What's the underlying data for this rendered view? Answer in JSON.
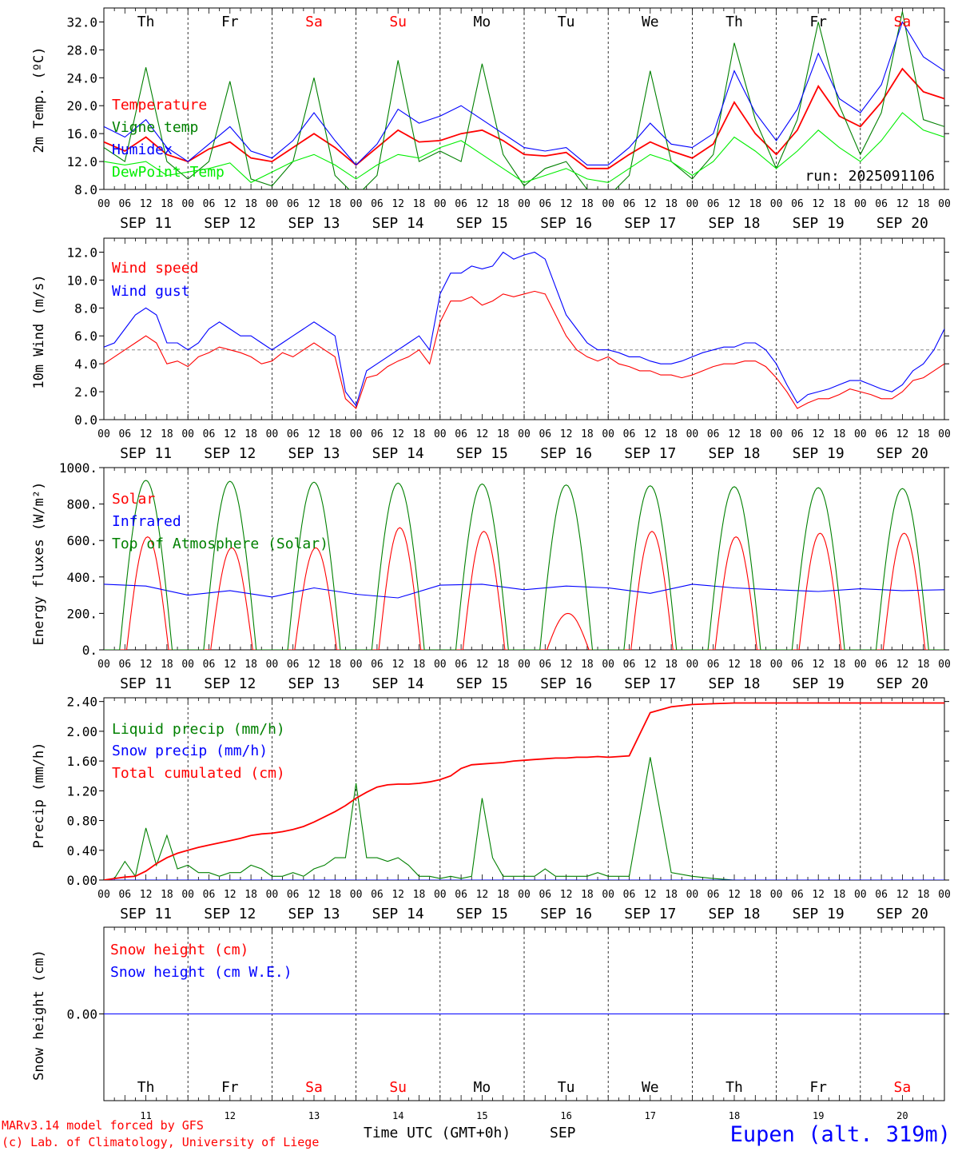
{
  "footer": {
    "model_line": "MARv3.14 model forced by GFS",
    "credit_line": "(c) Lab. of Climatology, University of Liege",
    "xaxis_title": "Time UTC (GMT+0h)",
    "month_label": "SEP",
    "station": "Eupen (alt. 319m)"
  },
  "colors": {
    "red": "#ff0000",
    "blue": "#0000ff",
    "dark_green": "#008000",
    "light_green": "#00ee00",
    "axis": "#000000",
    "weekend": "#ff0000"
  },
  "days": {
    "weekdays": [
      "Th",
      "Fr",
      "Sa",
      "Su",
      "Mo",
      "Tu",
      "We",
      "Th",
      "Fr",
      "Sa"
    ],
    "weekend_flags": [
      false,
      false,
      true,
      true,
      false,
      false,
      false,
      false,
      false,
      true
    ],
    "date_labels": [
      "SEP 11",
      "SEP 12",
      "SEP 13",
      "SEP 14",
      "SEP 15",
      "SEP 16",
      "SEP 17",
      "SEP 18",
      "SEP 19",
      "SEP 20"
    ],
    "day_numbers": [
      "11",
      "12",
      "13",
      "14",
      "15",
      "16",
      "17",
      "18",
      "19",
      "20"
    ],
    "hour_ticks": [
      "00",
      "06",
      "12",
      "18"
    ],
    "final_tick": "00"
  },
  "chart_data": [
    {
      "type": "line",
      "id": "temperature",
      "ylabel": "2m Temp. (ºC)",
      "ylim": [
        8,
        34
      ],
      "yticks": [
        "8.0",
        "12.0",
        "16.0",
        "20.0",
        "24.0",
        "28.0",
        "32.0"
      ],
      "run_label": "run: 2025091106",
      "x_hours": [
        0,
        6,
        12,
        18,
        24,
        30,
        36,
        42,
        48,
        54,
        60,
        66,
        72,
        78,
        84,
        90,
        96,
        102,
        108,
        114,
        120,
        126,
        132,
        138,
        144,
        150,
        156,
        162,
        168,
        174,
        180,
        186,
        192,
        198,
        204,
        210,
        216,
        222,
        228,
        234,
        240
      ],
      "series": [
        {
          "name": "Temperature",
          "color": "red",
          "values": [
            14.8,
            13.5,
            15.5,
            13.0,
            12.0,
            13.8,
            14.8,
            12.5,
            12.0,
            14.0,
            16.0,
            14.0,
            11.5,
            14.0,
            16.5,
            14.8,
            15.0,
            16.0,
            16.5,
            15.0,
            13.0,
            12.8,
            13.3,
            11.0,
            11.0,
            13.0,
            14.8,
            13.5,
            12.5,
            14.5,
            20.5,
            16.0,
            13.0,
            16.5,
            22.8,
            18.5,
            17.0,
            20.5,
            25.3,
            22.0,
            21.0
          ]
        },
        {
          "name": "Vigne temp",
          "color": "dark_green",
          "values": [
            14.0,
            12.0,
            25.5,
            12.0,
            9.5,
            12.0,
            23.5,
            9.5,
            8.5,
            12.0,
            24.0,
            10.0,
            7.0,
            10.0,
            26.5,
            12.0,
            13.5,
            12.0,
            26.0,
            13.0,
            8.5,
            11.0,
            12.0,
            8.0,
            7.0,
            10.0,
            25.0,
            12.0,
            9.5,
            13.0,
            29.0,
            18.0,
            11.0,
            18.0,
            32.0,
            20.0,
            13.0,
            19.0,
            33.5,
            18.0,
            17.0
          ]
        },
        {
          "name": "Humidex",
          "color": "blue",
          "values": [
            17.0,
            15.5,
            18.0,
            14.0,
            12.0,
            14.5,
            17.0,
            13.5,
            12.5,
            15.0,
            19.0,
            15.0,
            11.5,
            14.5,
            19.5,
            17.5,
            18.5,
            20.0,
            18.0,
            16.0,
            14.0,
            13.5,
            14.0,
            11.5,
            11.5,
            14.0,
            17.5,
            14.5,
            14.0,
            16.0,
            25.0,
            19.0,
            15.0,
            19.5,
            27.5,
            21.0,
            19.0,
            23.0,
            32.0,
            27.0,
            25.0
          ]
        },
        {
          "name": "DewPoint Temp",
          "color": "light_green",
          "values": [
            12.0,
            11.5,
            12.0,
            10.0,
            10.5,
            11.0,
            11.8,
            9.0,
            10.5,
            12.0,
            13.0,
            11.5,
            9.5,
            11.5,
            13.0,
            12.5,
            14.0,
            15.0,
            13.0,
            11.0,
            9.0,
            10.0,
            11.0,
            9.5,
            9.0,
            11.0,
            13.0,
            12.0,
            10.0,
            12.0,
            15.5,
            13.5,
            11.0,
            13.5,
            16.5,
            14.0,
            12.0,
            15.0,
            19.0,
            16.5,
            15.5
          ]
        }
      ]
    },
    {
      "type": "line",
      "id": "wind",
      "ylabel": "10m Wind (m/s)",
      "ylim": [
        0,
        13
      ],
      "yticks": [
        "0.0",
        "2.0",
        "4.0",
        "6.0",
        "8.0",
        "10.0",
        "12.0"
      ],
      "reference_line": 5.0,
      "x_hours": [
        0,
        3,
        6,
        9,
        12,
        15,
        18,
        21,
        24,
        27,
        30,
        33,
        36,
        39,
        42,
        45,
        48,
        51,
        54,
        57,
        60,
        63,
        66,
        69,
        72,
        75,
        78,
        81,
        84,
        87,
        90,
        93,
        96,
        99,
        102,
        105,
        108,
        111,
        114,
        117,
        120,
        123,
        126,
        129,
        132,
        135,
        138,
        141,
        144,
        147,
        150,
        153,
        156,
        159,
        162,
        165,
        168,
        171,
        174,
        177,
        180,
        183,
        186,
        189,
        192,
        195,
        198,
        201,
        204,
        207,
        210,
        213,
        216,
        219,
        222,
        225,
        228,
        231,
        234,
        237,
        240
      ],
      "series": [
        {
          "name": "Wind speed",
          "color": "red",
          "values": [
            4.0,
            4.5,
            5.0,
            5.5,
            6.0,
            5.5,
            4.0,
            4.2,
            3.8,
            4.5,
            4.8,
            5.2,
            5.0,
            4.8,
            4.5,
            4.0,
            4.2,
            4.8,
            4.5,
            5.0,
            5.5,
            5.0,
            4.5,
            1.5,
            0.8,
            3.0,
            3.2,
            3.8,
            4.2,
            4.5,
            5.0,
            4.0,
            7.0,
            8.5,
            8.5,
            8.8,
            8.2,
            8.5,
            9.0,
            8.8,
            9.0,
            9.2,
            9.0,
            7.5,
            6.0,
            5.0,
            4.5,
            4.2,
            4.5,
            4.0,
            3.8,
            3.5,
            3.5,
            3.2,
            3.2,
            3.0,
            3.2,
            3.5,
            3.8,
            4.0,
            4.0,
            4.2,
            4.2,
            3.8,
            3.0,
            2.0,
            0.8,
            1.2,
            1.5,
            1.5,
            1.8,
            2.2,
            2.0,
            1.8,
            1.5,
            1.5,
            2.0,
            2.8,
            3.0,
            3.5,
            4.0
          ]
        },
        {
          "name": "Wind gust",
          "color": "blue",
          "values": [
            5.2,
            5.5,
            6.5,
            7.5,
            8.0,
            7.5,
            5.5,
            5.5,
            5.0,
            5.5,
            6.5,
            7.0,
            6.5,
            6.0,
            6.0,
            5.5,
            5.0,
            5.5,
            6.0,
            6.5,
            7.0,
            6.5,
            6.0,
            2.0,
            1.0,
            3.5,
            4.0,
            4.5,
            5.0,
            5.5,
            6.0,
            5.0,
            9.0,
            10.5,
            10.5,
            11.0,
            10.8,
            11.0,
            12.0,
            11.5,
            11.8,
            12.0,
            11.5,
            9.5,
            7.5,
            6.5,
            5.5,
            5.0,
            5.0,
            4.8,
            4.5,
            4.5,
            4.2,
            4.0,
            4.0,
            4.2,
            4.5,
            4.8,
            5.0,
            5.2,
            5.2,
            5.5,
            5.5,
            5.0,
            4.0,
            2.5,
            1.2,
            1.8,
            2.0,
            2.2,
            2.5,
            2.8,
            2.8,
            2.5,
            2.2,
            2.0,
            2.5,
            3.5,
            4.0,
            5.0,
            6.5
          ]
        }
      ]
    },
    {
      "type": "line",
      "id": "energy",
      "ylabel": "Energy fluxes (W/m²)",
      "ylim": [
        0,
        1000
      ],
      "yticks": [
        "0.",
        "200.",
        "400.",
        "600.",
        "800.",
        "1000."
      ],
      "solar_peaks": [
        620,
        560,
        560,
        670,
        650,
        200,
        650,
        620,
        640,
        640
      ],
      "toa_peaks": [
        930,
        925,
        920,
        915,
        910,
        905,
        900,
        895,
        890,
        885
      ],
      "x_hours": [
        0,
        12,
        24,
        36,
        48,
        60,
        72,
        84,
        96,
        108,
        120,
        132,
        144,
        156,
        168,
        180,
        192,
        204,
        216,
        228,
        240
      ],
      "series": [
        {
          "name": "Solar",
          "color": "red",
          "values": [
            0,
            620,
            0,
            560,
            0,
            560,
            0,
            670,
            0,
            650,
            0,
            200,
            0,
            650,
            0,
            620,
            0,
            640,
            0,
            640,
            0
          ]
        },
        {
          "name": "Infrared",
          "color": "blue",
          "values": [
            360,
            350,
            300,
            325,
            290,
            340,
            305,
            285,
            355,
            360,
            330,
            350,
            340,
            310,
            360,
            340,
            330,
            320,
            335,
            325,
            330
          ]
        },
        {
          "name": "Top of Atmosphere (Solar)",
          "color": "dark_green",
          "values": [
            0,
            930,
            0,
            925,
            0,
            920,
            0,
            915,
            0,
            910,
            0,
            905,
            0,
            900,
            0,
            895,
            0,
            890,
            0,
            885,
            0
          ]
        }
      ]
    },
    {
      "type": "line",
      "id": "precip",
      "ylabel": "Precip (mm/h)",
      "ylim": [
        0,
        2.45
      ],
      "yticks": [
        "0.00",
        "0.40",
        "0.80",
        "1.20",
        "1.60",
        "2.00",
        "2.40"
      ],
      "x_hours": [
        0,
        3,
        6,
        9,
        12,
        15,
        18,
        21,
        24,
        27,
        30,
        33,
        36,
        39,
        42,
        45,
        48,
        51,
        54,
        57,
        60,
        63,
        66,
        69,
        72,
        75,
        78,
        81,
        84,
        87,
        90,
        93,
        96,
        99,
        102,
        105,
        108,
        111,
        114,
        117,
        120,
        123,
        126,
        129,
        132,
        135,
        138,
        141,
        144,
        150,
        156,
        162,
        168,
        174,
        180,
        186,
        192,
        198,
        204,
        210,
        216,
        222,
        228,
        234,
        240
      ],
      "series": [
        {
          "name": "Liquid precip (mm/h)",
          "color": "dark_green",
          "values": [
            0,
            0.02,
            0.25,
            0.05,
            0.7,
            0.2,
            0.6,
            0.15,
            0.2,
            0.1,
            0.1,
            0.05,
            0.1,
            0.1,
            0.2,
            0.15,
            0.05,
            0.05,
            0.1,
            0.05,
            0.15,
            0.2,
            0.3,
            0.3,
            1.3,
            0.3,
            0.3,
            0.25,
            0.3,
            0.2,
            0.05,
            0.05,
            0.02,
            0.05,
            0.02,
            0.05,
            1.1,
            0.3,
            0.05,
            0.05,
            0.05,
            0.05,
            0.15,
            0.05,
            0.05,
            0.05,
            0.05,
            0.1,
            0.05,
            0.05,
            1.65,
            0.1,
            0.05,
            0.02,
            0,
            0,
            0,
            0,
            0,
            0,
            0,
            0,
            0,
            0,
            0
          ]
        },
        {
          "name": "Snow precip (mm/h)",
          "color": "blue",
          "values": [
            0,
            0,
            0,
            0,
            0,
            0,
            0,
            0,
            0,
            0,
            0,
            0,
            0,
            0,
            0,
            0,
            0,
            0,
            0,
            0,
            0,
            0,
            0,
            0,
            0,
            0,
            0,
            0,
            0,
            0,
            0,
            0,
            0,
            0,
            0,
            0,
            0,
            0,
            0,
            0,
            0,
            0,
            0,
            0,
            0,
            0,
            0,
            0,
            0,
            0,
            0,
            0,
            0,
            0,
            0,
            0,
            0,
            0,
            0,
            0,
            0,
            0,
            0,
            0,
            0
          ]
        },
        {
          "name": "Total cumulated (cm)",
          "color": "red",
          "values": [
            0,
            0.02,
            0.04,
            0.05,
            0.12,
            0.22,
            0.3,
            0.36,
            0.4,
            0.44,
            0.47,
            0.5,
            0.53,
            0.56,
            0.6,
            0.62,
            0.63,
            0.65,
            0.68,
            0.72,
            0.78,
            0.85,
            0.92,
            1.0,
            1.1,
            1.18,
            1.25,
            1.28,
            1.29,
            1.29,
            1.3,
            1.32,
            1.35,
            1.4,
            1.5,
            1.55,
            1.56,
            1.57,
            1.58,
            1.6,
            1.61,
            1.62,
            1.63,
            1.64,
            1.64,
            1.65,
            1.65,
            1.66,
            1.65,
            1.67,
            2.25,
            2.33,
            2.36,
            2.37,
            2.38,
            2.38,
            2.38,
            2.38,
            2.38,
            2.38,
            2.38,
            2.38,
            2.38,
            2.38,
            2.38
          ]
        }
      ]
    },
    {
      "type": "line",
      "id": "snow",
      "ylabel": "Snow height (cm)",
      "ylim": [
        -1,
        1
      ],
      "yticks": [
        "0.00"
      ],
      "x_hours": [
        0,
        240
      ],
      "series": [
        {
          "name": "Snow height (cm)",
          "color": "red",
          "values": [
            0,
            0
          ]
        },
        {
          "name": "Snow height (cm W.E.)",
          "color": "blue",
          "values": [
            0,
            0
          ]
        }
      ]
    }
  ]
}
